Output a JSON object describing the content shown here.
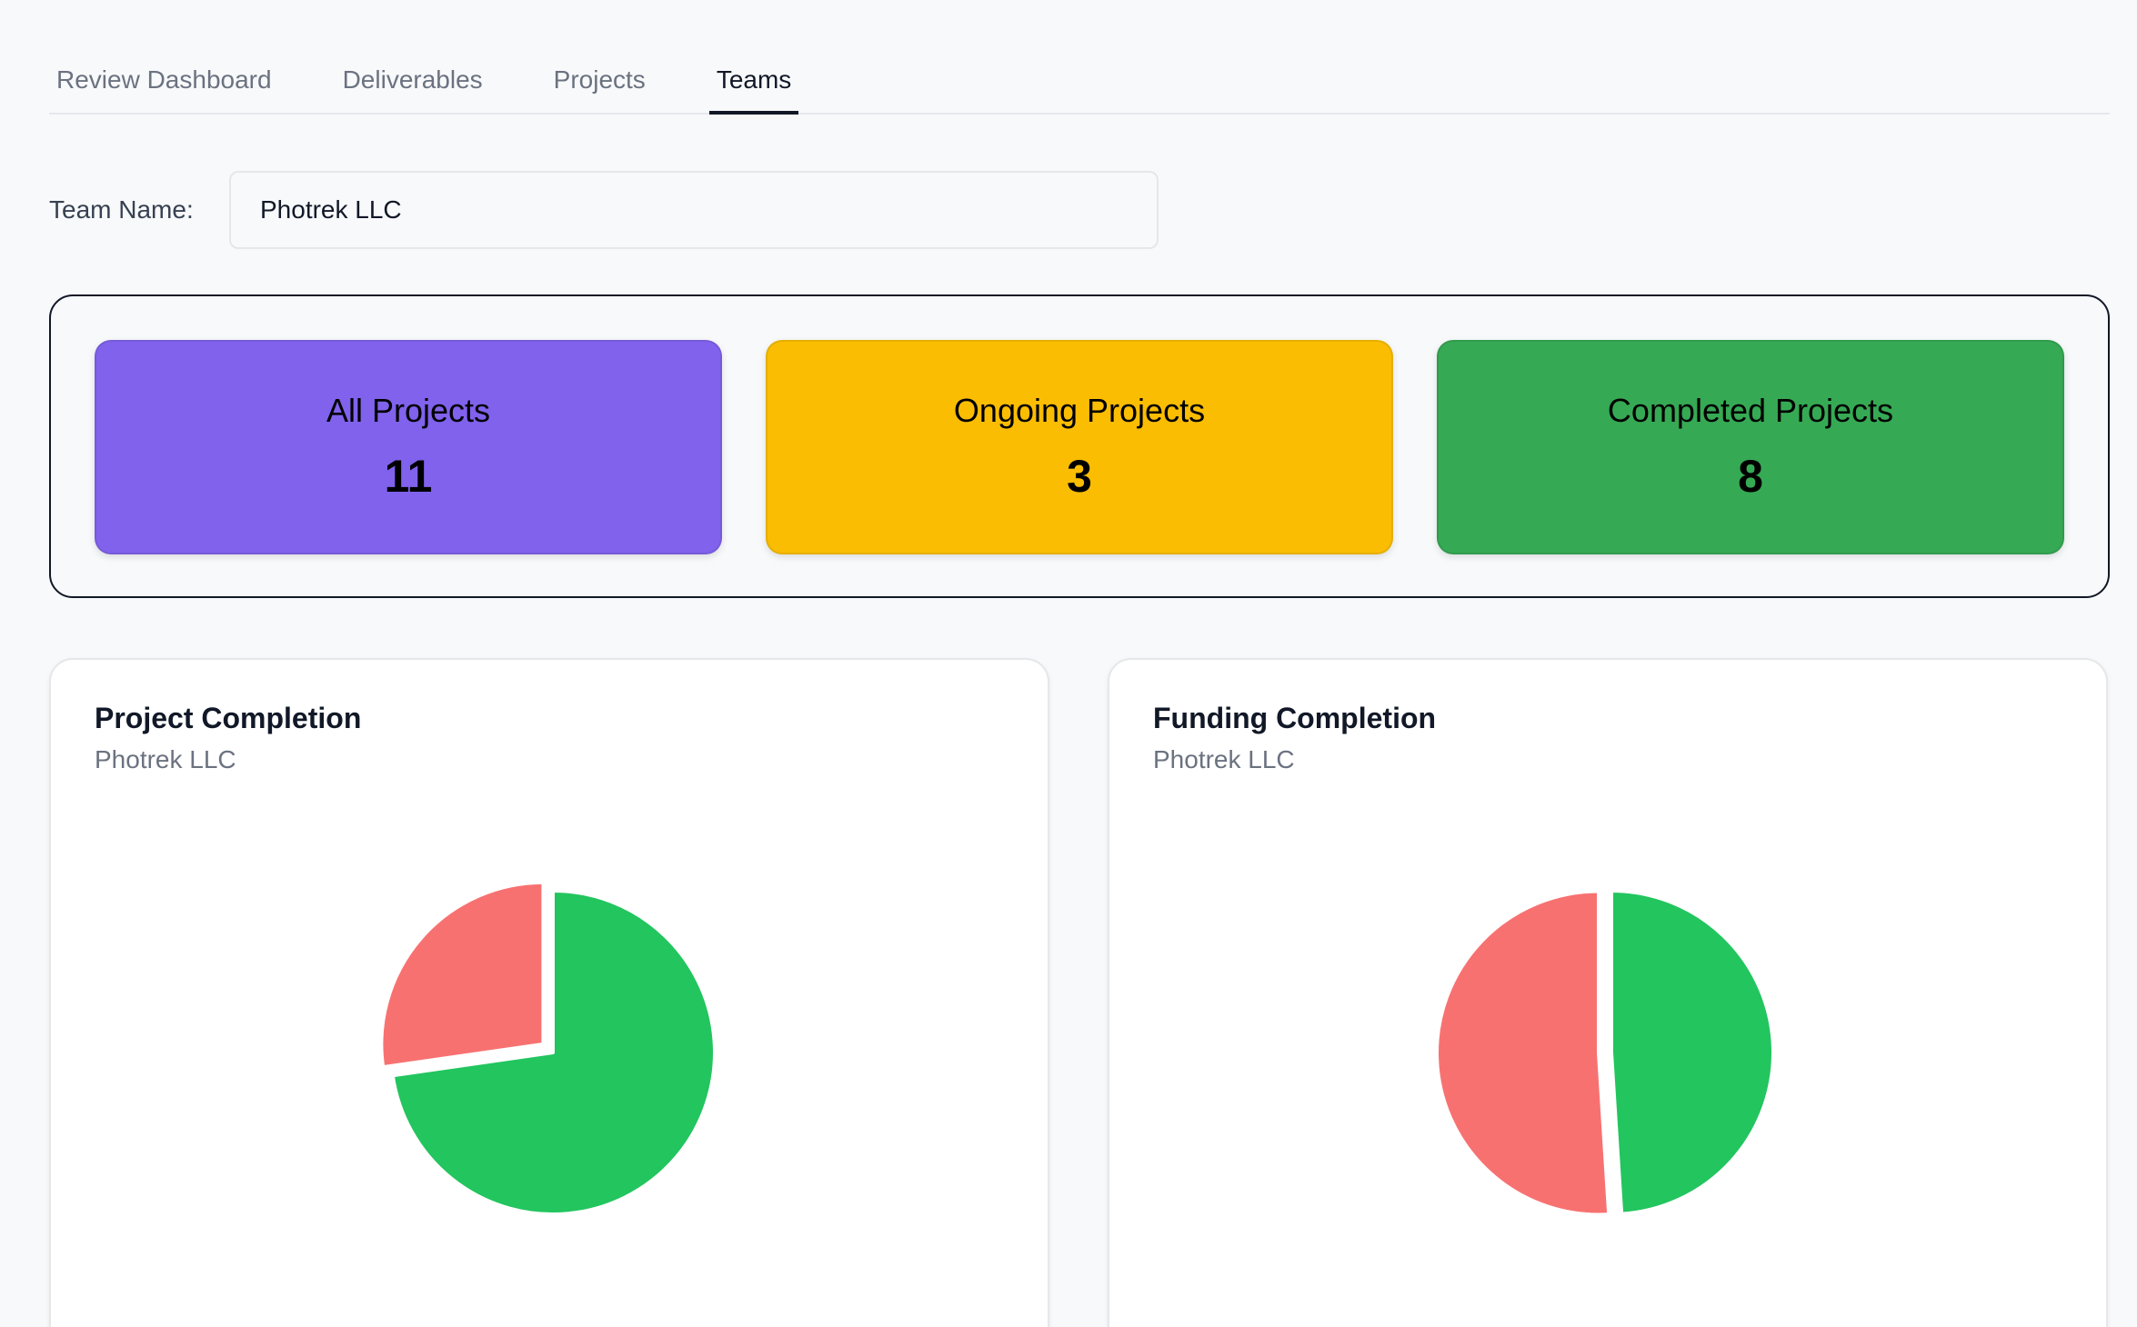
{
  "tabs": [
    {
      "label": "Review Dashboard",
      "active": false
    },
    {
      "label": "Deliverables",
      "active": false
    },
    {
      "label": "Projects",
      "active": false
    },
    {
      "label": "Teams",
      "active": true
    }
  ],
  "team": {
    "label": "Team Name:",
    "value": "Photrek LLC"
  },
  "stats": {
    "all": {
      "label": "All Projects",
      "value": "11",
      "color": "#8062ec"
    },
    "ongoing": {
      "label": "Ongoing Projects",
      "value": "3",
      "color": "#fabd02"
    },
    "completed": {
      "label": "Completed Projects",
      "value": "8",
      "color": "#36a954"
    }
  },
  "charts": {
    "project": {
      "title": "Project Completion",
      "subtitle": "Photrek LLC"
    },
    "funding": {
      "title": "Funding Completion",
      "subtitle": "Photrek LLC"
    }
  },
  "chart_data": [
    {
      "type": "pie",
      "title": "Project Completion",
      "subtitle": "Photrek LLC",
      "slices": [
        {
          "value": 8,
          "color": "#22c55e"
        },
        {
          "value": 3,
          "color": "#f87171"
        }
      ]
    },
    {
      "type": "pie",
      "title": "Funding Completion",
      "subtitle": "Photrek LLC",
      "slices": [
        {
          "value": 49,
          "color": "#22c55e"
        },
        {
          "value": 51,
          "color": "#f87171"
        }
      ]
    }
  ]
}
